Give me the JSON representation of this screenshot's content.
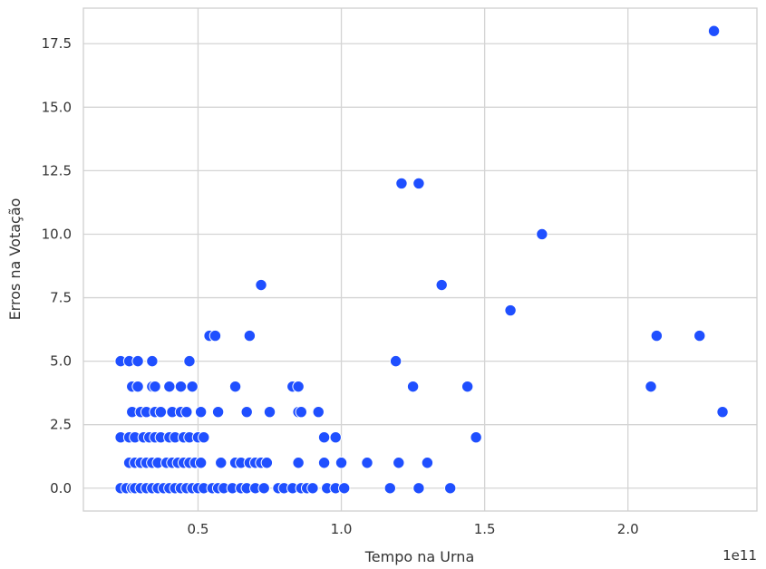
{
  "chart_data": {
    "type": "scatter",
    "xlabel": "Tempo na Urna",
    "ylabel": "Erros na Votação",
    "x_offset_label": "1e11",
    "x_unit_scale": 100000000000.0,
    "xlim": [
      0.1,
      2.45
    ],
    "ylim": [
      -0.9,
      18.9
    ],
    "x_ticks": [
      0.5,
      1.0,
      1.5,
      2.0
    ],
    "x_tick_labels": [
      "0.5",
      "1.0",
      "1.5",
      "2.0"
    ],
    "y_ticks": [
      0,
      2.5,
      5,
      7.5,
      10,
      12.5,
      15,
      17.5
    ],
    "y_tick_labels": [
      "0.0",
      "2.5",
      "5.0",
      "7.5",
      "10.0",
      "12.5",
      "15.0",
      "17.5"
    ],
    "grid": true,
    "marker_color": "#1f4fff",
    "points": [
      [
        0.23,
        0
      ],
      [
        0.25,
        0
      ],
      [
        0.27,
        0
      ],
      [
        0.28,
        0
      ],
      [
        0.3,
        0
      ],
      [
        0.32,
        0
      ],
      [
        0.34,
        0
      ],
      [
        0.36,
        0
      ],
      [
        0.38,
        0
      ],
      [
        0.4,
        0
      ],
      [
        0.42,
        0
      ],
      [
        0.44,
        0
      ],
      [
        0.46,
        0
      ],
      [
        0.48,
        0
      ],
      [
        0.5,
        0
      ],
      [
        0.52,
        0
      ],
      [
        0.55,
        0
      ],
      [
        0.57,
        0
      ],
      [
        0.59,
        0
      ],
      [
        0.62,
        0
      ],
      [
        0.65,
        0
      ],
      [
        0.67,
        0
      ],
      [
        0.7,
        0
      ],
      [
        0.73,
        0
      ],
      [
        0.78,
        0
      ],
      [
        0.8,
        0
      ],
      [
        0.83,
        0
      ],
      [
        0.86,
        0
      ],
      [
        0.88,
        0
      ],
      [
        0.9,
        0
      ],
      [
        0.95,
        0
      ],
      [
        0.98,
        0
      ],
      [
        1.01,
        0
      ],
      [
        1.17,
        0
      ],
      [
        1.27,
        0
      ],
      [
        1.38,
        0
      ],
      [
        0.26,
        1
      ],
      [
        0.28,
        1
      ],
      [
        0.3,
        1
      ],
      [
        0.32,
        1
      ],
      [
        0.34,
        1
      ],
      [
        0.36,
        1
      ],
      [
        0.39,
        1
      ],
      [
        0.41,
        1
      ],
      [
        0.43,
        1
      ],
      [
        0.45,
        1
      ],
      [
        0.47,
        1
      ],
      [
        0.49,
        1
      ],
      [
        0.51,
        1
      ],
      [
        0.58,
        1
      ],
      [
        0.63,
        1
      ],
      [
        0.65,
        1
      ],
      [
        0.68,
        1
      ],
      [
        0.7,
        1
      ],
      [
        0.72,
        1
      ],
      [
        0.74,
        1
      ],
      [
        0.85,
        1
      ],
      [
        0.94,
        1
      ],
      [
        1.0,
        1
      ],
      [
        1.09,
        1
      ],
      [
        1.2,
        1
      ],
      [
        1.3,
        1
      ],
      [
        0.23,
        2
      ],
      [
        0.26,
        2
      ],
      [
        0.28,
        2
      ],
      [
        0.31,
        2
      ],
      [
        0.33,
        2
      ],
      [
        0.35,
        2
      ],
      [
        0.37,
        2
      ],
      [
        0.4,
        2
      ],
      [
        0.42,
        2
      ],
      [
        0.45,
        2
      ],
      [
        0.47,
        2
      ],
      [
        0.5,
        2
      ],
      [
        0.52,
        2
      ],
      [
        0.94,
        2
      ],
      [
        0.98,
        2
      ],
      [
        1.47,
        2
      ],
      [
        0.27,
        3
      ],
      [
        0.3,
        3
      ],
      [
        0.32,
        3
      ],
      [
        0.35,
        3
      ],
      [
        0.37,
        3
      ],
      [
        0.41,
        3
      ],
      [
        0.44,
        3
      ],
      [
        0.46,
        3
      ],
      [
        0.51,
        3
      ],
      [
        0.57,
        3
      ],
      [
        0.67,
        3
      ],
      [
        0.75,
        3
      ],
      [
        0.85,
        3
      ],
      [
        0.86,
        3
      ],
      [
        0.92,
        3
      ],
      [
        2.33,
        3
      ],
      [
        0.27,
        4
      ],
      [
        0.29,
        4
      ],
      [
        0.34,
        4
      ],
      [
        0.35,
        4
      ],
      [
        0.4,
        4
      ],
      [
        0.44,
        4
      ],
      [
        0.48,
        4
      ],
      [
        0.63,
        4
      ],
      [
        0.83,
        4
      ],
      [
        0.85,
        4
      ],
      [
        1.25,
        4
      ],
      [
        1.44,
        4
      ],
      [
        2.08,
        4
      ],
      [
        0.23,
        5
      ],
      [
        0.26,
        5
      ],
      [
        0.29,
        5
      ],
      [
        0.34,
        5
      ],
      [
        0.47,
        5
      ],
      [
        1.19,
        5
      ],
      [
        0.54,
        6
      ],
      [
        0.56,
        6
      ],
      [
        0.68,
        6
      ],
      [
        2.1,
        6
      ],
      [
        2.25,
        6
      ],
      [
        1.59,
        7
      ],
      [
        0.72,
        8
      ],
      [
        1.35,
        8
      ],
      [
        1.7,
        10
      ],
      [
        1.21,
        12
      ],
      [
        1.27,
        12
      ],
      [
        2.3,
        18
      ]
    ]
  }
}
